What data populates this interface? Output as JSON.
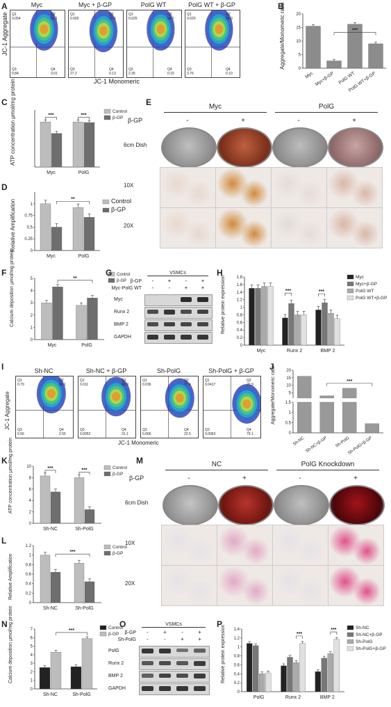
{
  "panels": {
    "A": {
      "letter": "A",
      "ylabel": "JC-1 Aggregate",
      "xlabel": "JC-1 Monomeric",
      "plots": [
        {
          "title": "Myc",
          "q1": "Q1\n0.054",
          "q2": "Q2\n92.1",
          "q3": "Q3\n0.84",
          "q4": "Q4\n3.01"
        },
        {
          "title": "Myc  + β-GP",
          "q1": "Q1\n0.065",
          "q2": "Q2\n72.6",
          "q3": "Q3\n27.2",
          "q4": "Q4\n0.13"
        },
        {
          "title": "PolG WT",
          "q1": "Q1\n0.025",
          "q2": "Q2\n93.7",
          "q3": "Q3\n2.35",
          "q4": "Q4\n0.15"
        },
        {
          "title": "PolG WT + β-GP",
          "q1": "Q1\n0.020",
          "q2": "Q2\n96.0",
          "q3": "Q3\n3.76",
          "q4": "Q4\n0.10"
        }
      ]
    },
    "B": {
      "letter": "B",
      "ylabel": "Aggregate/Monomeric ratio",
      "sig": "***"
    },
    "C": {
      "letter": "C",
      "ylabel": "ATP concentration μmol/mg protein",
      "sig1": "***",
      "sig2": "***",
      "legend": [
        "Control",
        "β-GP"
      ]
    },
    "D": {
      "letter": "D",
      "ylabel": "Relative Amplification",
      "sig": "**",
      "legend": [
        "Control",
        "β-GP"
      ]
    },
    "E": {
      "letter": "E",
      "groups": [
        "Myc",
        "PolG"
      ],
      "bgp_label": "β-GP",
      "signs": [
        "-",
        "+",
        "-",
        "+"
      ],
      "rows": [
        "6cm Dish",
        "10X",
        "20X"
      ]
    },
    "F": {
      "letter": "F",
      "ylabel": "Calcium deposition μmol/mg protein",
      "sig": "**",
      "legend": [
        "Control",
        "β-GP"
      ]
    },
    "G": {
      "letter": "G",
      "header": "VSMCs",
      "conds": [
        "β-GP",
        "Myc-PolG WT"
      ],
      "signs_bgp": [
        "-",
        "+",
        "-",
        "+"
      ],
      "signs_polg": [
        "-",
        "-",
        "+",
        "+"
      ],
      "rows": [
        "Myc",
        "Runx 2",
        "BMP 2",
        "GAPDH"
      ]
    },
    "H": {
      "letter": "H",
      "ylabel": "Relative protein expression",
      "sig1": "***",
      "sig2": "***",
      "legend": [
        "Myc",
        "Myc+β-GP",
        "PolG WT",
        "PolG WT+β-GP"
      ]
    },
    "I": {
      "letter": "I",
      "ylabel": "JC-1 Aggregate",
      "xlabel": "JC-1 Monomeric",
      "plots": [
        {
          "title": "Sh-NC",
          "q1": "Q1\n0.79",
          "q2": "Q2\n96.1",
          "q3": "Q3\n0.56",
          "q4": "Q4\n2.55"
        },
        {
          "title": "Sh-NC + β-GP",
          "q1": "Q1\n0.011",
          "q2": "Q2\n68.9",
          "q3": "Q3\n0.0052",
          "q4": "Q4\n31.1"
        },
        {
          "title": "Sh-PolG",
          "q1": "Q1\n0.036",
          "q2": "Q2\n77.4",
          "q3": "Q3\n0.066",
          "q4": "Q4\n22.5"
        },
        {
          "title": "Sh-PolG + β-GP",
          "q1": "Q1\n0.0417",
          "q2": "Q2\n20.9",
          "q3": "Q3\n0.0063",
          "q4": "Q4\n79.1"
        }
      ]
    },
    "J": {
      "letter": "J",
      "ylabel": "Aggregate/Monomeric ratio",
      "sig": "***"
    },
    "K": {
      "letter": "K",
      "ylabel": "ATP concentration μmol/mg protein",
      "sig1": "***",
      "sig2": "***",
      "legend": [
        "Control",
        "β-GP"
      ]
    },
    "L": {
      "letter": "L",
      "ylabel": "Relative Amplification",
      "sig": "***",
      "legend": [
        "Control",
        "β-GP"
      ]
    },
    "M": {
      "letter": "M",
      "groups": [
        "NC",
        "PolG Knockdown"
      ],
      "bgp_label": "β-GP",
      "signs": [
        "-",
        "+",
        "-",
        "+"
      ],
      "rows": [
        "6cm Dish",
        "10X",
        "20X"
      ]
    },
    "N": {
      "letter": "N",
      "ylabel": "Calcium deposition μmol/mg protein",
      "sig": "***",
      "legend": [
        "Control",
        "β-GP"
      ]
    },
    "O": {
      "letter": "O",
      "header": "VSMCs",
      "conds": [
        "β-GP",
        "Sh-PolG"
      ],
      "signs_bgp": [
        "-",
        "+",
        "-",
        "+"
      ],
      "signs_polg": [
        "-",
        "-",
        "+",
        "+"
      ],
      "rows": [
        "PolG",
        "Runx 2",
        "BMP 2",
        "GAPDH"
      ]
    },
    "P": {
      "letter": "P",
      "ylabel": "Relative protein expression",
      "sig1": "***",
      "sig2": "***",
      "legend": [
        "Sh-NC",
        "Sh-NC+β-GP",
        "Sh-PolG",
        "Sh-PolG+β-GP"
      ]
    }
  },
  "chart_data": [
    {
      "id": "B",
      "type": "bar",
      "categories": [
        "Myc",
        "Myc+β-GP",
        "PolG WT",
        "PolG WT+β-GP"
      ],
      "values": [
        15.5,
        2.7,
        16.2,
        9.0
      ],
      "ylim": [
        0,
        20
      ],
      "yticks": [
        0,
        5,
        10,
        15,
        20
      ]
    },
    {
      "id": "C",
      "type": "bar",
      "categories": [
        "Myc",
        "PolG"
      ],
      "series": [
        {
          "name": "Control",
          "values": [
            7.9,
            7.9
          ]
        },
        {
          "name": "β-GP",
          "values": [
            5.9,
            7.8
          ]
        }
      ],
      "ylim": [
        0,
        10
      ]
    },
    {
      "id": "D",
      "type": "bar",
      "categories": [
        "Myc",
        "PolG"
      ],
      "series": [
        {
          "name": "Control",
          "values": [
            1.0,
            0.92
          ]
        },
        {
          "name": "β-GP",
          "values": [
            0.5,
            0.71
          ]
        }
      ],
      "ylim": [
        0,
        1.25
      ],
      "yticks": [
        0,
        0.25,
        0.5,
        0.75,
        1.0
      ]
    },
    {
      "id": "F",
      "type": "bar",
      "categories": [
        "Myc",
        "PolG"
      ],
      "series": [
        {
          "name": "Control",
          "values": [
            3.0,
            2.8
          ]
        },
        {
          "name": "β-GP",
          "values": [
            4.3,
            3.4
          ]
        }
      ],
      "ylim": [
        0,
        5
      ],
      "yticks": [
        0,
        1,
        2,
        3,
        4,
        5
      ]
    },
    {
      "id": "H",
      "type": "bar",
      "categories": [
        "Myc",
        "Runx 2",
        "BMP 2"
      ],
      "series": [
        {
          "name": "Myc",
          "values": [
            1.5,
            0.72,
            0.93
          ]
        },
        {
          "name": "Myc+β-GP",
          "values": [
            1.5,
            1.1,
            1.12
          ]
        },
        {
          "name": "PolG WT",
          "values": [
            1.55,
            0.8,
            0.84
          ]
        },
        {
          "name": "PolG WT+β-GP",
          "values": [
            1.55,
            0.8,
            0.7
          ]
        }
      ],
      "ylim": [
        0,
        1.8
      ],
      "yticks": [
        0,
        0.2,
        0.4,
        0.6,
        0.8,
        1.0,
        1.2,
        1.4,
        1.6,
        1.8
      ]
    },
    {
      "id": "J",
      "type": "bar",
      "categories": [
        "Sh-NC",
        "Sh-NC+β-GP",
        "Sh-PolG",
        "Sh-PolG+β-GP"
      ],
      "values": [
        16,
        3.0,
        8.0,
        0.45
      ],
      "yticks": [
        0,
        0.5,
        1.0,
        1.5,
        5,
        10,
        15,
        20
      ]
    },
    {
      "id": "K",
      "type": "bar",
      "categories": [
        "Sh-NC",
        "Sh-PolG"
      ],
      "series": [
        {
          "name": "Control",
          "values": [
            8.3,
            8.0
          ]
        },
        {
          "name": "β-GP",
          "values": [
            5.5,
            2.4
          ]
        }
      ],
      "ylim": [
        0,
        10
      ],
      "yticks": [
        0,
        2,
        4,
        6,
        8,
        10
      ]
    },
    {
      "id": "L",
      "type": "bar",
      "categories": [
        "Sh-NC",
        "Sh-PolG"
      ],
      "series": [
        {
          "name": "Control",
          "values": [
            1.0,
            0.83
          ]
        },
        {
          "name": "β-GP",
          "values": [
            0.64,
            0.44
          ]
        }
      ],
      "ylim": [
        0,
        1.2
      ],
      "yticks": [
        0,
        0.2,
        0.4,
        0.6,
        0.8,
        1.0,
        1.2
      ]
    },
    {
      "id": "N",
      "type": "bar",
      "categories": [
        "Sh-NC",
        "Sh-PolG"
      ],
      "series": [
        {
          "name": "Control",
          "values": [
            2.5,
            2.6
          ]
        },
        {
          "name": "β-GP",
          "values": [
            4.3,
            5.9
          ]
        }
      ],
      "ylim": [
        0,
        7
      ],
      "yticks": [
        0,
        1,
        2,
        3,
        4,
        5,
        6,
        7
      ]
    },
    {
      "id": "P",
      "type": "bar",
      "categories": [
        "PolG",
        "Runx 2",
        "BMP 2"
      ],
      "series": [
        {
          "name": "Sh-NC",
          "values": [
            1.08,
            0.58,
            0.45
          ]
        },
        {
          "name": "Sh-NC+β-GP",
          "values": [
            1.03,
            0.77,
            0.75
          ]
        },
        {
          "name": "Sh-PolG",
          "values": [
            0.4,
            0.65,
            0.85
          ]
        },
        {
          "name": "Sh-PolG+β-GP",
          "values": [
            0.42,
            1.08,
            1.17
          ]
        }
      ],
      "ylim": [
        0,
        1.4
      ],
      "yticks": [
        0,
        0.2,
        0.4,
        0.6,
        0.8,
        1.0,
        1.2,
        1.4
      ]
    }
  ]
}
